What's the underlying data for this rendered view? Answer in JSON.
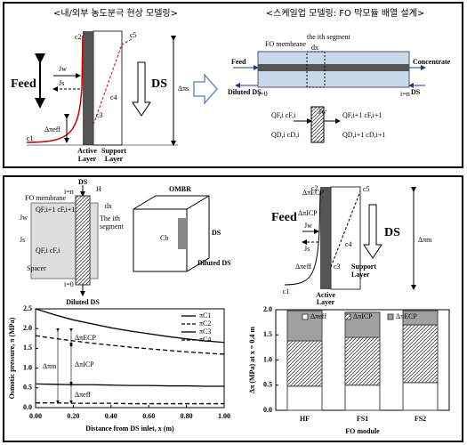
{
  "top_panel": {
    "left": {
      "title": "<내/외부 농도분극 현상 모델링>",
      "feed": "Feed",
      "jw": "Jw",
      "js": "Js",
      "ds": "DS",
      "delta_pi_eff": "Δπeff",
      "delta_pi_s": "Δπs",
      "c": [
        "c1",
        "c2",
        "c3",
        "c4",
        "c5"
      ],
      "active_layer": [
        "Active",
        "Layer"
      ],
      "support_layer": [
        "Support",
        "Layer"
      ]
    },
    "right": {
      "title": "<스케일업 모델링: FO 막모듈 배열 설계>",
      "fo_membrane": "FO membrane",
      "segment": "the ith segment",
      "dx": "dx",
      "feed": "Feed",
      "concentrate": "Concentrate",
      "diluted_ds": "Diluted DS",
      "ds": "DS",
      "i0": "i=0",
      "in": "i=n",
      "jw": "Jw",
      "q_f_i": "QF,i  cF,i",
      "q_f_i1": "QF,i+1  cF,i+1",
      "q_d_i": "QD,i  cD,i",
      "q_d_i1": "QD,i+1  cD,i+1"
    }
  },
  "bottom_panel": {
    "left_diagram": {
      "ds": "DS",
      "in": "i=n",
      "h": "H",
      "fo_membrane": "FO membrane",
      "dx": "dx",
      "segment": [
        "The ith",
        "segment"
      ],
      "jw": "Jw",
      "js": "Js",
      "q_f_i1": "QF,i+1 cF,i+1",
      "q_f_i": "QF,i  cF,i",
      "spacer": "Spacer",
      "i0": "i=0",
      "diluted_ds": "Diluted DS",
      "ombr": "OMBR",
      "cb": "Cb",
      "ombr_ds": "DS",
      "ombr_diluted_ds": "Diluted DS"
    },
    "right_diagram": {
      "feed": "Feed",
      "delta_pi_ecp": "ΔπECP",
      "delta_pi_icp": "ΔπICP",
      "jw": "Jw",
      "js": "Js",
      "ds": "DS",
      "delta_pi_m": "Δπm",
      "delta_pi_eff": "Δπeff",
      "c": [
        "c1",
        "c2",
        "c3",
        "c4",
        "c5"
      ],
      "active_layer": [
        "Active",
        "Layer"
      ],
      "support_layer": [
        "Support",
        "Layer"
      ]
    }
  },
  "chart_data": [
    {
      "type": "line",
      "x_label": "Distance from DS inlet, x (m)",
      "y_label": "Osmotic pressure, π (MPa)",
      "x": [
        0,
        0.1,
        0.2,
        0.3,
        0.4,
        0.5,
        0.6,
        0.7,
        0.8,
        0.9,
        1.0
      ],
      "series": [
        {
          "name": "πC1",
          "color": "#000000",
          "dash": false,
          "values": [
            2.5,
            2.35,
            2.22,
            2.12,
            2.02,
            1.94,
            1.87,
            1.8,
            1.74,
            1.69,
            1.65
          ]
        },
        {
          "name": "πC2",
          "color": "#000000",
          "dash": true,
          "values": [
            1.82,
            1.75,
            1.69,
            1.63,
            1.58,
            1.53,
            1.49,
            1.45,
            1.41,
            1.38,
            1.35
          ]
        },
        {
          "name": "πC3",
          "color": "#000000",
          "dash": false,
          "values": [
            0.6,
            0.59,
            0.58,
            0.58,
            0.57,
            0.56,
            0.56,
            0.55,
            0.55,
            0.54,
            0.54
          ]
        },
        {
          "name": "πC4",
          "color": "#000000",
          "dash": true,
          "values": [
            0.12,
            0.12,
            0.11,
            0.11,
            0.11,
            0.1,
            0.1,
            0.1,
            0.1,
            0.1,
            0.1
          ]
        }
      ],
      "xlim": [
        0,
        1
      ],
      "xticks": [
        {
          "value": 0,
          "label": "0.00"
        },
        {
          "value": 0.2,
          "label": "0.20"
        },
        {
          "value": 0.4,
          "label": "0.40"
        },
        {
          "value": 0.6,
          "label": "0.60"
        },
        {
          "value": 0.8,
          "label": "0.80"
        },
        {
          "value": 1,
          "label": "1.00"
        }
      ],
      "ylim": [
        0,
        2.5
      ],
      "yticks": [
        {
          "value": 0,
          "label": "0.0"
        },
        {
          "value": 0.5,
          "label": "0.5"
        },
        {
          "value": 1,
          "label": "1.0"
        },
        {
          "value": 1.5,
          "label": "1.5"
        },
        {
          "value": 2,
          "label": "2.0"
        },
        {
          "value": 2.5,
          "label": "2.5"
        }
      ],
      "annotations": [
        "ΔπECP",
        "Δπm",
        "ΔπICP",
        "Δπeff"
      ]
    },
    {
      "type": "bar",
      "stacked": true,
      "x_label": "FO module",
      "y_label": "Δπ (MPa) at x = 0.4 m",
      "categories": [
        "HF",
        "FS1",
        "FS2"
      ],
      "series": [
        {
          "name": "Δπeff",
          "color": "#ffffff",
          "values": [
            0.48,
            0.5,
            0.55
          ]
        },
        {
          "name": "ΔπICP",
          "color": "#d0d0d0",
          "values": [
            0.9,
            0.95,
            1.15
          ]
        },
        {
          "name": "ΔπECP",
          "color": "#a0a0a0",
          "values": [
            0.6,
            0.5,
            0.28
          ]
        }
      ],
      "ylim": [
        0,
        2
      ],
      "yticks": [
        {
          "value": 0,
          "label": "0.0"
        },
        {
          "value": 0.5,
          "label": "0.5"
        },
        {
          "value": 1,
          "label": "1.0"
        },
        {
          "value": 1.5,
          "label": "1.5"
        },
        {
          "value": 2,
          "label": "2.0"
        }
      ]
    }
  ]
}
